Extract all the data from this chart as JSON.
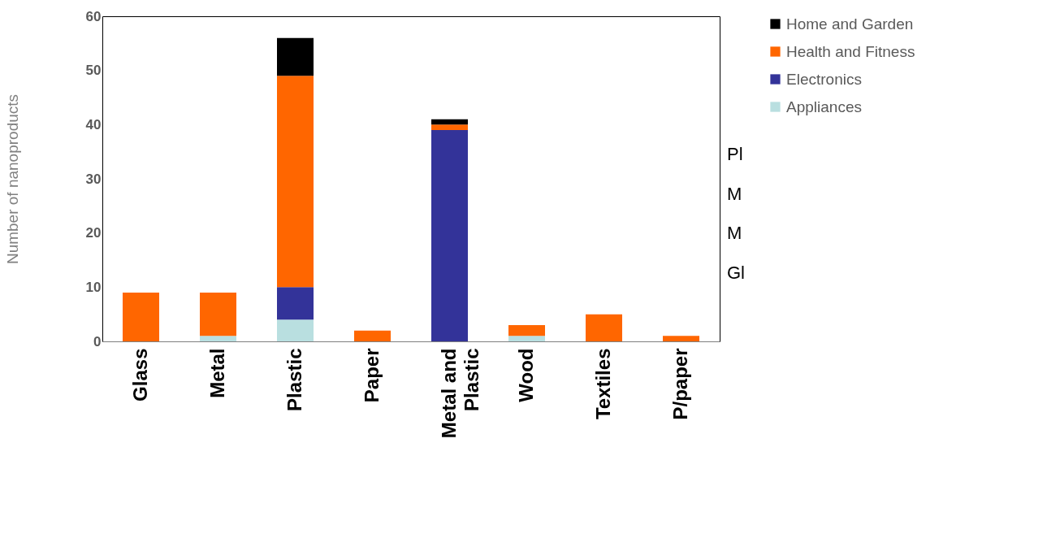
{
  "chart_data": {
    "type": "bar",
    "stacked": true,
    "ylabel": "Number of nanoproducts",
    "categories": [
      "Glass",
      "Metal",
      "Plastic",
      "Paper",
      "Metal and Plastic",
      "Wood",
      "Textiles",
      "P/paper"
    ],
    "series": [
      {
        "name": "Appliances",
        "color": "#b9dfe0",
        "values": [
          null,
          1,
          4,
          null,
          null,
          1,
          null,
          null
        ]
      },
      {
        "name": "Electronics",
        "color": "#333399",
        "values": [
          null,
          null,
          6,
          null,
          39,
          null,
          null,
          null
        ]
      },
      {
        "name": "Health and Fitness",
        "color": "#ff6600",
        "values": [
          9,
          8,
          39,
          2,
          1,
          2,
          5,
          1
        ]
      },
      {
        "name": "Home and Garden",
        "color": "#000000",
        "values": [
          null,
          null,
          7,
          null,
          1,
          null,
          null,
          null
        ]
      }
    ],
    "ylim": [
      0,
      60
    ],
    "yticks": [
      0,
      10,
      20,
      30,
      40,
      50,
      60
    ],
    "grid": false,
    "legend": "top right",
    "annotations": [
      "Pl",
      "M",
      "M",
      "Gl"
    ]
  }
}
